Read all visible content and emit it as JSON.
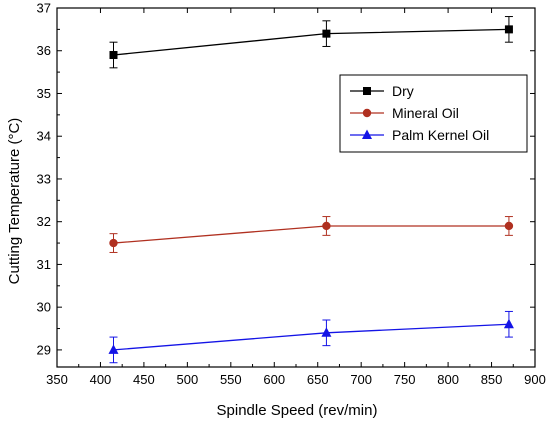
{
  "chart_data": {
    "type": "line",
    "xlabel": "Spindle Speed (rev/min)",
    "ylabel": "Cutting Temperature (°C)",
    "xlim": [
      350,
      900
    ],
    "ylim": [
      28.6,
      37
    ],
    "xticks": [
      350,
      400,
      450,
      500,
      550,
      600,
      650,
      700,
      750,
      800,
      850,
      900
    ],
    "yticks": [
      29,
      30,
      31,
      32,
      33,
      34,
      35,
      36,
      37
    ],
    "grid": false,
    "legend_position": "top-right",
    "series": [
      {
        "name": "Dry",
        "color": "#000000",
        "marker": "square",
        "x": [
          415,
          660,
          870
        ],
        "y": [
          35.9,
          36.4,
          36.5
        ],
        "error": [
          0.3,
          0.3,
          0.3
        ]
      },
      {
        "name": "Mineral Oil",
        "color": "#b03020",
        "marker": "circle",
        "x": [
          415,
          660,
          870
        ],
        "y": [
          31.5,
          31.9,
          31.9
        ],
        "error": [
          0.22,
          0.22,
          0.22
        ]
      },
      {
        "name": "Palm Kernel Oil",
        "color": "#1414e6",
        "marker": "triangle",
        "x": [
          415,
          660,
          870
        ],
        "y": [
          29.0,
          29.4,
          29.6
        ],
        "error": [
          0.3,
          0.3,
          0.3
        ]
      }
    ]
  }
}
